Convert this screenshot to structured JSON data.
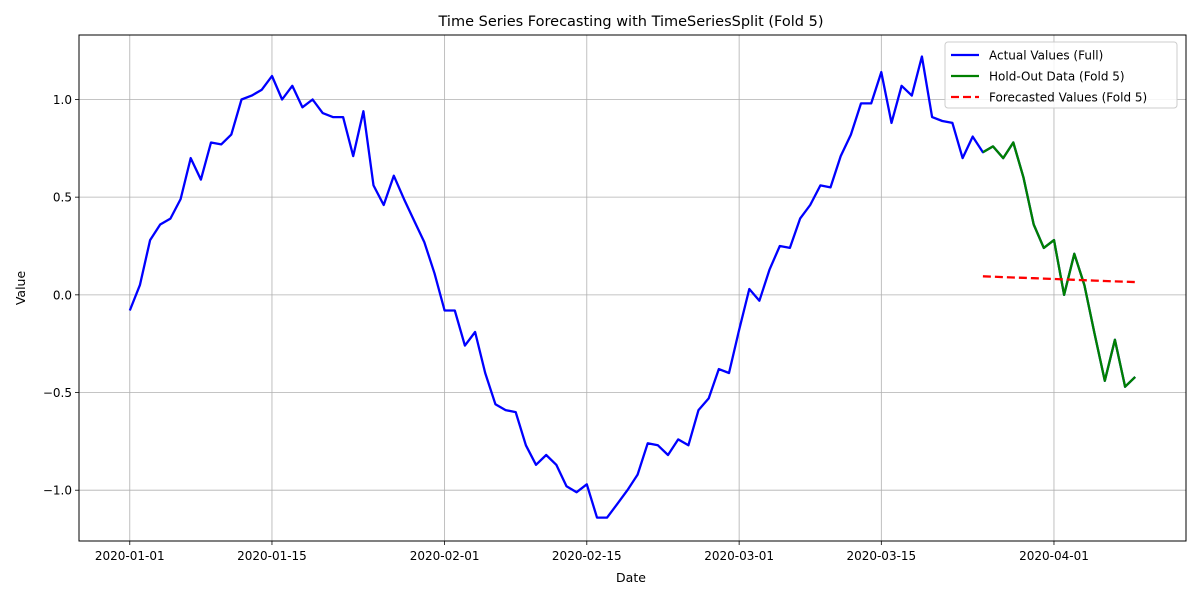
{
  "chart_data": {
    "type": "line",
    "title": "Time Series Forecasting with TimeSeriesSplit (Fold 5)",
    "xlabel": "Date",
    "ylabel": "Value",
    "xlim": [
      "2019-12-27",
      "2020-04-14"
    ],
    "ylim": [
      -1.26,
      1.33
    ],
    "grid": true,
    "legend_position": "top-right",
    "x_ticks": [
      "2020-01-01",
      "2020-01-15",
      "2020-02-01",
      "2020-02-15",
      "2020-03-01",
      "2020-03-15",
      "2020-04-01"
    ],
    "y_ticks": [
      -1.0,
      -0.5,
      0.0,
      0.5,
      1.0
    ],
    "y_tick_labels": [
      "−1.0",
      "−0.5",
      "0.0",
      "0.5",
      "1.0"
    ],
    "series": [
      {
        "name": "Actual Values (Full)",
        "color": "#0000ff",
        "style": "solid",
        "start_date": "2020-01-01",
        "values": [
          -0.08,
          0.05,
          0.28,
          0.36,
          0.39,
          0.49,
          0.7,
          0.59,
          0.78,
          0.77,
          0.82,
          1.0,
          1.02,
          1.05,
          1.12,
          1.0,
          1.07,
          0.96,
          1.0,
          0.93,
          0.91,
          0.91,
          0.71,
          0.94,
          0.56,
          0.46,
          0.61,
          0.49,
          0.38,
          0.27,
          0.11,
          -0.08,
          -0.08,
          -0.26,
          -0.19,
          -0.4,
          -0.56,
          -0.59,
          -0.6,
          -0.77,
          -0.87,
          -0.82,
          -0.87,
          -0.98,
          -1.01,
          -0.97,
          -1.14,
          -1.14,
          -1.07,
          -1.0,
          -0.92,
          -0.76,
          -0.77,
          -0.82,
          -0.74,
          -0.77,
          -0.59,
          -0.53,
          -0.38,
          -0.4,
          -0.18,
          0.03,
          -0.03,
          0.13,
          0.25,
          0.24,
          0.39,
          0.46,
          0.56,
          0.55,
          0.71,
          0.82,
          0.98,
          0.98,
          1.14,
          0.88,
          1.07,
          1.02,
          1.22,
          0.91,
          0.89,
          0.88,
          0.7,
          0.81,
          0.73,
          0.76,
          0.7,
          0.78,
          0.6,
          0.36,
          0.24,
          0.28,
          0.0,
          0.21,
          0.05,
          -0.2,
          -0.44,
          -0.23,
          -0.47,
          -0.42
        ]
      },
      {
        "name": "Hold-Out Data (Fold 5)",
        "color": "#008000",
        "style": "solid",
        "start_date": "2020-03-25",
        "values": [
          0.73,
          0.76,
          0.7,
          0.78,
          0.6,
          0.36,
          0.24,
          0.28,
          0.0,
          0.21,
          0.05,
          -0.2,
          -0.44,
          -0.23,
          -0.47,
          -0.42
        ]
      },
      {
        "name": "Forecasted Values (Fold 5)",
        "color": "#ff0000",
        "style": "dashed",
        "start_date": "2020-03-25",
        "values": [
          0.095,
          0.093,
          0.091,
          0.089,
          0.087,
          0.085,
          0.083,
          0.081,
          0.079,
          0.077,
          0.075,
          0.073,
          0.071,
          0.069,
          0.067,
          0.065
        ]
      }
    ]
  }
}
